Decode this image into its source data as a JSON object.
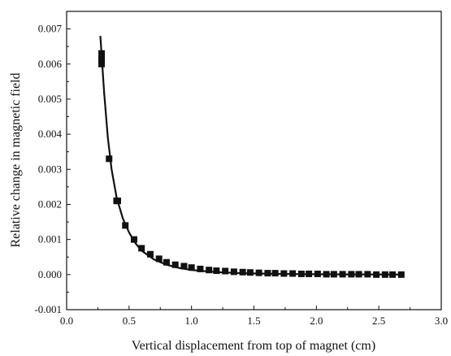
{
  "chart_data": {
    "type": "scatter",
    "xlabel": "Vertical displacement from top of magnet (cm)",
    "ylabel": "Relative change in magnetic field",
    "xlim": [
      0.0,
      3.0
    ],
    "ylim": [
      -0.001,
      0.0075
    ],
    "x_ticks": [
      "0.0",
      "0.5",
      "1.0",
      "1.5",
      "2.0",
      "2.5",
      "3.0"
    ],
    "y_ticks": [
      "-0.001",
      "0.000",
      "0.001",
      "0.002",
      "0.003",
      "0.004",
      "0.005",
      "0.006",
      "0.007"
    ],
    "grid": false,
    "legend": "none",
    "series": [
      {
        "kind": "points",
        "marker": "square",
        "color": "#111111",
        "points": [
          [
            0.28,
            0.0063
          ],
          [
            0.28,
            0.0062
          ],
          [
            0.28,
            0.0061
          ],
          [
            0.28,
            0.006
          ],
          [
            0.34,
            0.0033
          ],
          [
            0.4,
            0.0021
          ],
          [
            0.41,
            0.0021
          ],
          [
            0.47,
            0.0014
          ],
          [
            0.54,
            0.001
          ],
          [
            0.6,
            0.00075
          ],
          [
            0.67,
            0.00058
          ],
          [
            0.74,
            0.00045
          ],
          [
            0.8,
            0.00035
          ],
          [
            0.87,
            0.00028
          ],
          [
            0.94,
            0.00024
          ],
          [
            1.0,
            0.0002
          ],
          [
            1.07,
            0.00016
          ],
          [
            1.14,
            0.00013
          ],
          [
            1.2,
            0.00011
          ],
          [
            1.27,
            0.0001
          ],
          [
            1.34,
            8e-05
          ],
          [
            1.41,
            7e-05
          ],
          [
            1.47,
            6e-05
          ],
          [
            1.54,
            5e-05
          ],
          [
            1.61,
            4e-05
          ],
          [
            1.67,
            4e-05
          ],
          [
            1.74,
            3e-05
          ],
          [
            1.81,
            3e-05
          ],
          [
            1.88,
            2e-05
          ],
          [
            1.94,
            2e-05
          ],
          [
            2.01,
            2e-05
          ],
          [
            2.08,
            1e-05
          ],
          [
            2.14,
            1e-05
          ],
          [
            2.21,
            1e-05
          ],
          [
            2.28,
            1e-05
          ],
          [
            2.34,
            1e-05
          ],
          [
            2.41,
            1e-05
          ],
          [
            2.48,
            0.0
          ],
          [
            2.55,
            0.0
          ],
          [
            2.61,
            0.0
          ],
          [
            2.68,
            0.0
          ]
        ]
      },
      {
        "kind": "line",
        "color": "#111111",
        "points": [
          [
            0.27,
            0.0068
          ],
          [
            0.3,
            0.0052
          ],
          [
            0.33,
            0.0039
          ],
          [
            0.36,
            0.003
          ],
          [
            0.4,
            0.0022
          ],
          [
            0.45,
            0.0016
          ],
          [
            0.5,
            0.0012
          ],
          [
            0.55,
            0.0009
          ],
          [
            0.6,
            0.00068
          ],
          [
            0.7,
            0.00043
          ],
          [
            0.8,
            0.00028
          ],
          [
            0.9,
            0.00019
          ],
          [
            1.0,
            0.00013
          ],
          [
            1.2,
            7e-05
          ],
          [
            1.4,
            4e-05
          ],
          [
            1.6,
            2.5e-05
          ],
          [
            1.8,
            1.5e-05
          ],
          [
            2.0,
            1e-05
          ],
          [
            2.2,
            6e-06
          ],
          [
            2.5,
            3e-06
          ],
          [
            2.7,
            2e-06
          ]
        ]
      }
    ]
  }
}
